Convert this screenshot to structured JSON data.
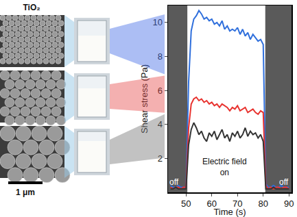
{
  "chart_data": {
    "type": "line",
    "xlabel": "Time (s)",
    "ylabel": "Shear stress (Pa)",
    "x": [
      44,
      45,
      46,
      47,
      48,
      49,
      50,
      51,
      52,
      53,
      54,
      55,
      56,
      57,
      58,
      59,
      60,
      61,
      62,
      63,
      64,
      65,
      66,
      67,
      68,
      69,
      70,
      71,
      72,
      73,
      74,
      75,
      76,
      77,
      78,
      79,
      80,
      81,
      82,
      83,
      84,
      85,
      86,
      87,
      88,
      89,
      90
    ],
    "series": [
      {
        "color": "#2f6fdc",
        "values": [
          0.4,
          0.3,
          0.3,
          0.4,
          0.3,
          0.3,
          0.3,
          6.5,
          9.5,
          10.2,
          10.4,
          10.7,
          10.5,
          10.2,
          10.3,
          10.1,
          10.2,
          9.9,
          10.0,
          9.8,
          10.1,
          9.6,
          9.8,
          9.5,
          9.6,
          9.5,
          9.7,
          9.3,
          9.6,
          9.2,
          9.4,
          9.0,
          9.3,
          9.1,
          8.9,
          9.0,
          8.7,
          0.5,
          0.3,
          0.3,
          0.4,
          0.3,
          0.3,
          0.4,
          0.3,
          0.3,
          0.3
        ]
      },
      {
        "color": "#e8322e",
        "values": [
          0.3,
          0.2,
          0.3,
          0.3,
          0.2,
          0.3,
          0.3,
          3.8,
          5.2,
          5.5,
          5.6,
          5.4,
          5.5,
          5.3,
          5.4,
          5.2,
          5.3,
          5.1,
          5.2,
          5.0,
          5.2,
          5.1,
          5.0,
          4.8,
          5.0,
          4.9,
          5.1,
          4.8,
          4.9,
          5.0,
          4.7,
          4.8,
          4.9,
          4.7,
          4.6,
          4.8,
          4.7,
          0.4,
          0.2,
          0.3,
          0.2,
          0.3,
          0.3,
          0.2,
          0.3,
          0.3,
          0.2
        ]
      },
      {
        "color": "#333333",
        "values": [
          0.2,
          0.2,
          0.3,
          0.2,
          0.2,
          0.2,
          0.2,
          2.8,
          3.7,
          4.1,
          3.8,
          3.4,
          3.6,
          3.2,
          3.0,
          3.5,
          3.3,
          3.6,
          3.1,
          3.4,
          3.7,
          3.2,
          3.4,
          3.0,
          3.5,
          3.3,
          3.6,
          3.2,
          3.4,
          3.8,
          3.3,
          3.6,
          3.4,
          3.5,
          3.2,
          3.4,
          3.0,
          0.2,
          0.2,
          0.2,
          0.3,
          0.2,
          0.2,
          0.2,
          0.2,
          0.2,
          0.2
        ]
      }
    ],
    "xlim": [
      43,
      91
    ],
    "xticks": [
      50,
      60,
      70,
      80,
      90
    ],
    "ylim": [
      0,
      11
    ],
    "yticks": [
      2,
      4,
      6,
      8,
      10
    ],
    "off_periods": [
      [
        43,
        50.5
      ],
      [
        80.8,
        91
      ]
    ],
    "annotations": [
      {
        "text": "off",
        "x": 45.5,
        "y": 0.6
      },
      {
        "text": "off",
        "x": 88,
        "y": 0.6
      },
      {
        "text": "Electric field on",
        "x": 65,
        "y": 1.5
      }
    ]
  },
  "panel": {
    "title": "TiO₂",
    "scale_bar": "1 μm"
  }
}
